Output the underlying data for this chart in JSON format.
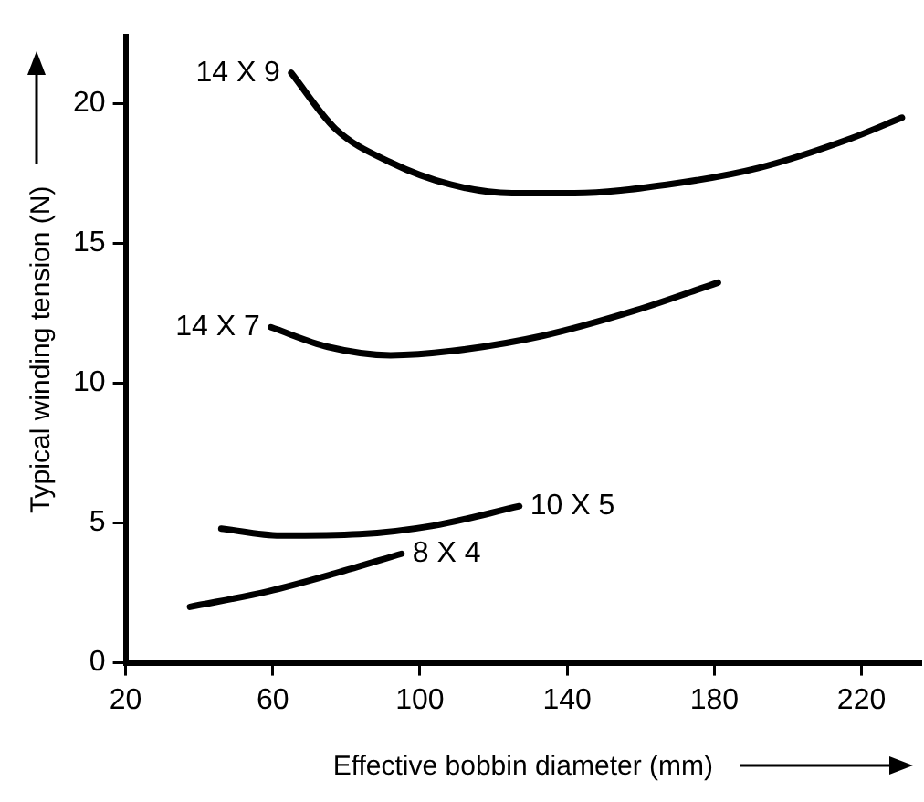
{
  "chart_data": {
    "type": "line",
    "xlabel": "Effective bobbin diameter (mm)",
    "ylabel": "Typical winding tension (N)",
    "xlim": [
      20,
      236
    ],
    "xticks": [
      20,
      60,
      100,
      140,
      180,
      220
    ],
    "ylim": [
      0,
      22.4
    ],
    "yticks": [
      0,
      5,
      10,
      15,
      20
    ],
    "grid": false,
    "legend": false,
    "marker": "none",
    "line_style": "solid",
    "series": [
      {
        "color": "#000000",
        "x": [
          65,
          77,
          92,
          108.5,
          125,
          142,
          167,
          192,
          217,
          231
        ],
        "values": [
          21.1,
          19.1,
          17.9,
          17.1,
          16.8,
          16.8,
          17.1,
          17.7,
          18.75,
          19.5
        ]
      },
      {
        "color": "#000000",
        "x": [
          59.5,
          75,
          92,
          108.5,
          133.5,
          158.5,
          181
        ],
        "values": [
          12.0,
          11.3,
          11.0,
          11.15,
          11.7,
          12.6,
          13.6
        ]
      },
      {
        "color": "#000000",
        "x": [
          46,
          62,
          83.5,
          103.5,
          127
        ],
        "values": [
          4.8,
          4.55,
          4.6,
          4.9,
          5.6
        ]
      },
      {
        "color": "#000000",
        "x": [
          37.5,
          58.5,
          77,
          95
        ],
        "values": [
          2.0,
          2.55,
          3.2,
          3.9
        ]
      }
    ],
    "annotations": [
      {
        "text": "14 X 9",
        "x": 65,
        "y": 21.1
      },
      {
        "text": "14 X 7",
        "x": 59.5,
        "y": 12.0
      },
      {
        "text": "10 X 5",
        "x": 127,
        "y": 5.6
      },
      {
        "text": "8 X 4",
        "x": 95,
        "y": 3.9
      }
    ]
  }
}
